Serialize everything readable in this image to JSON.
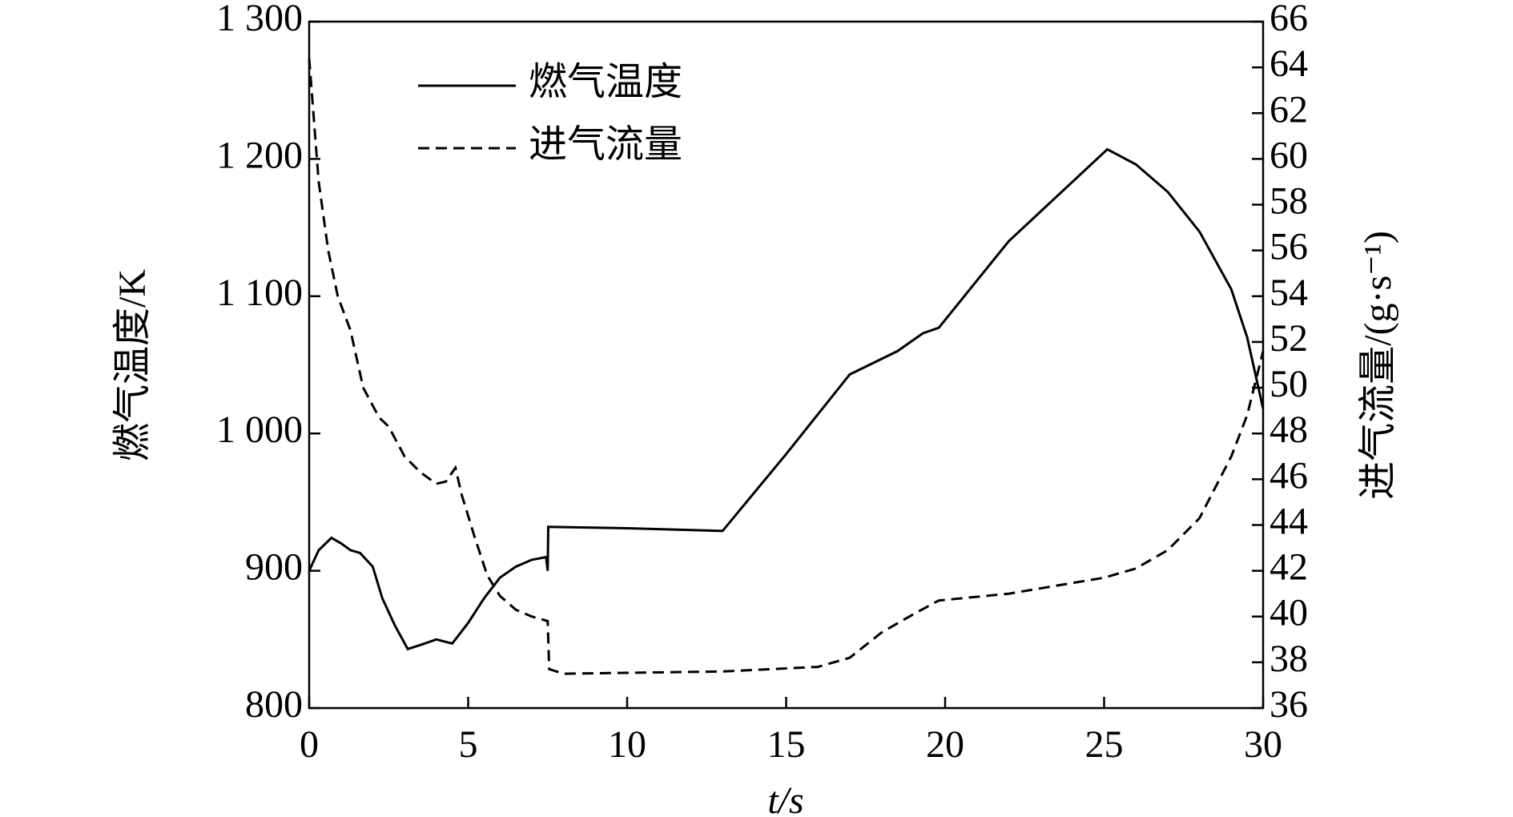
{
  "chart_data": {
    "type": "line",
    "x_label": "t/s",
    "y_label": "燃气温度/K",
    "y2_label": "进气流量/(g·s⁻¹)",
    "xlim": [
      0,
      30
    ],
    "xticks": [
      0,
      5,
      10,
      15,
      20,
      25,
      30
    ],
    "ylim": [
      800,
      1300
    ],
    "yticks": [
      800,
      900,
      {
        "value": 1000,
        "label": "1 000"
      },
      {
        "value": 1100,
        "label": "1 100"
      },
      {
        "value": 1200,
        "label": "1 200"
      },
      {
        "value": 1300,
        "label": "1 300"
      }
    ],
    "y2lim": [
      36,
      66
    ],
    "y2ticks": [
      36,
      38,
      40,
      42,
      44,
      46,
      48,
      50,
      52,
      54,
      56,
      58,
      60,
      62,
      64,
      66
    ],
    "legend": "upper-left",
    "series": [
      {
        "name": "燃气温度",
        "color": "#000000",
        "linestyle": "solid",
        "x": [
          0,
          0.3,
          0.7,
          1.0,
          1.3,
          1.6,
          2.0,
          2.3,
          2.7,
          3.1,
          3.5,
          4.0,
          4.5,
          5.0,
          5.5,
          6.0,
          6.5,
          7.0,
          7.45,
          7.5,
          7.52,
          10,
          13,
          15,
          17,
          18.5,
          19.3,
          19.8,
          22,
          25.1,
          26,
          27,
          28,
          29,
          29.5,
          30
        ],
        "values": [
          900,
          915,
          924,
          920,
          915,
          913,
          903,
          880,
          860,
          843,
          846,
          850,
          847,
          862,
          880,
          895,
          903,
          908,
          910,
          900,
          932,
          931,
          929,
          985,
          1043,
          1060,
          1073,
          1077,
          1140,
          1207,
          1196,
          1176,
          1147,
          1105,
          1070,
          1018
        ]
      },
      {
        "name": "进气流量",
        "color": "#000000",
        "linestyle": "dashed",
        "axis": "y2",
        "x": [
          0,
          0.3,
          0.6,
          0.9,
          1.3,
          1.7,
          2.2,
          2.5,
          3.0,
          3.5,
          4.0,
          4.3,
          4.6,
          4.8,
          5.2,
          5.6,
          6.0,
          6.5,
          7.0,
          7.5,
          7.55,
          8,
          13,
          16,
          17,
          18,
          19,
          19.8,
          22,
          25,
          26,
          27,
          28,
          29,
          29.5,
          30
        ],
        "values": [
          64.4,
          59,
          56,
          54,
          52.5,
          50,
          48.7,
          48.3,
          47,
          46.3,
          45.8,
          45.9,
          46.5,
          45.3,
          43.5,
          41.8,
          40.9,
          40.3,
          40,
          39.8,
          37.7,
          37.5,
          37.6,
          37.8,
          38.2,
          39.3,
          40.1,
          40.7,
          41,
          41.7,
          42.1,
          42.9,
          44.3,
          47,
          48.8,
          51.6
        ]
      }
    ]
  }
}
